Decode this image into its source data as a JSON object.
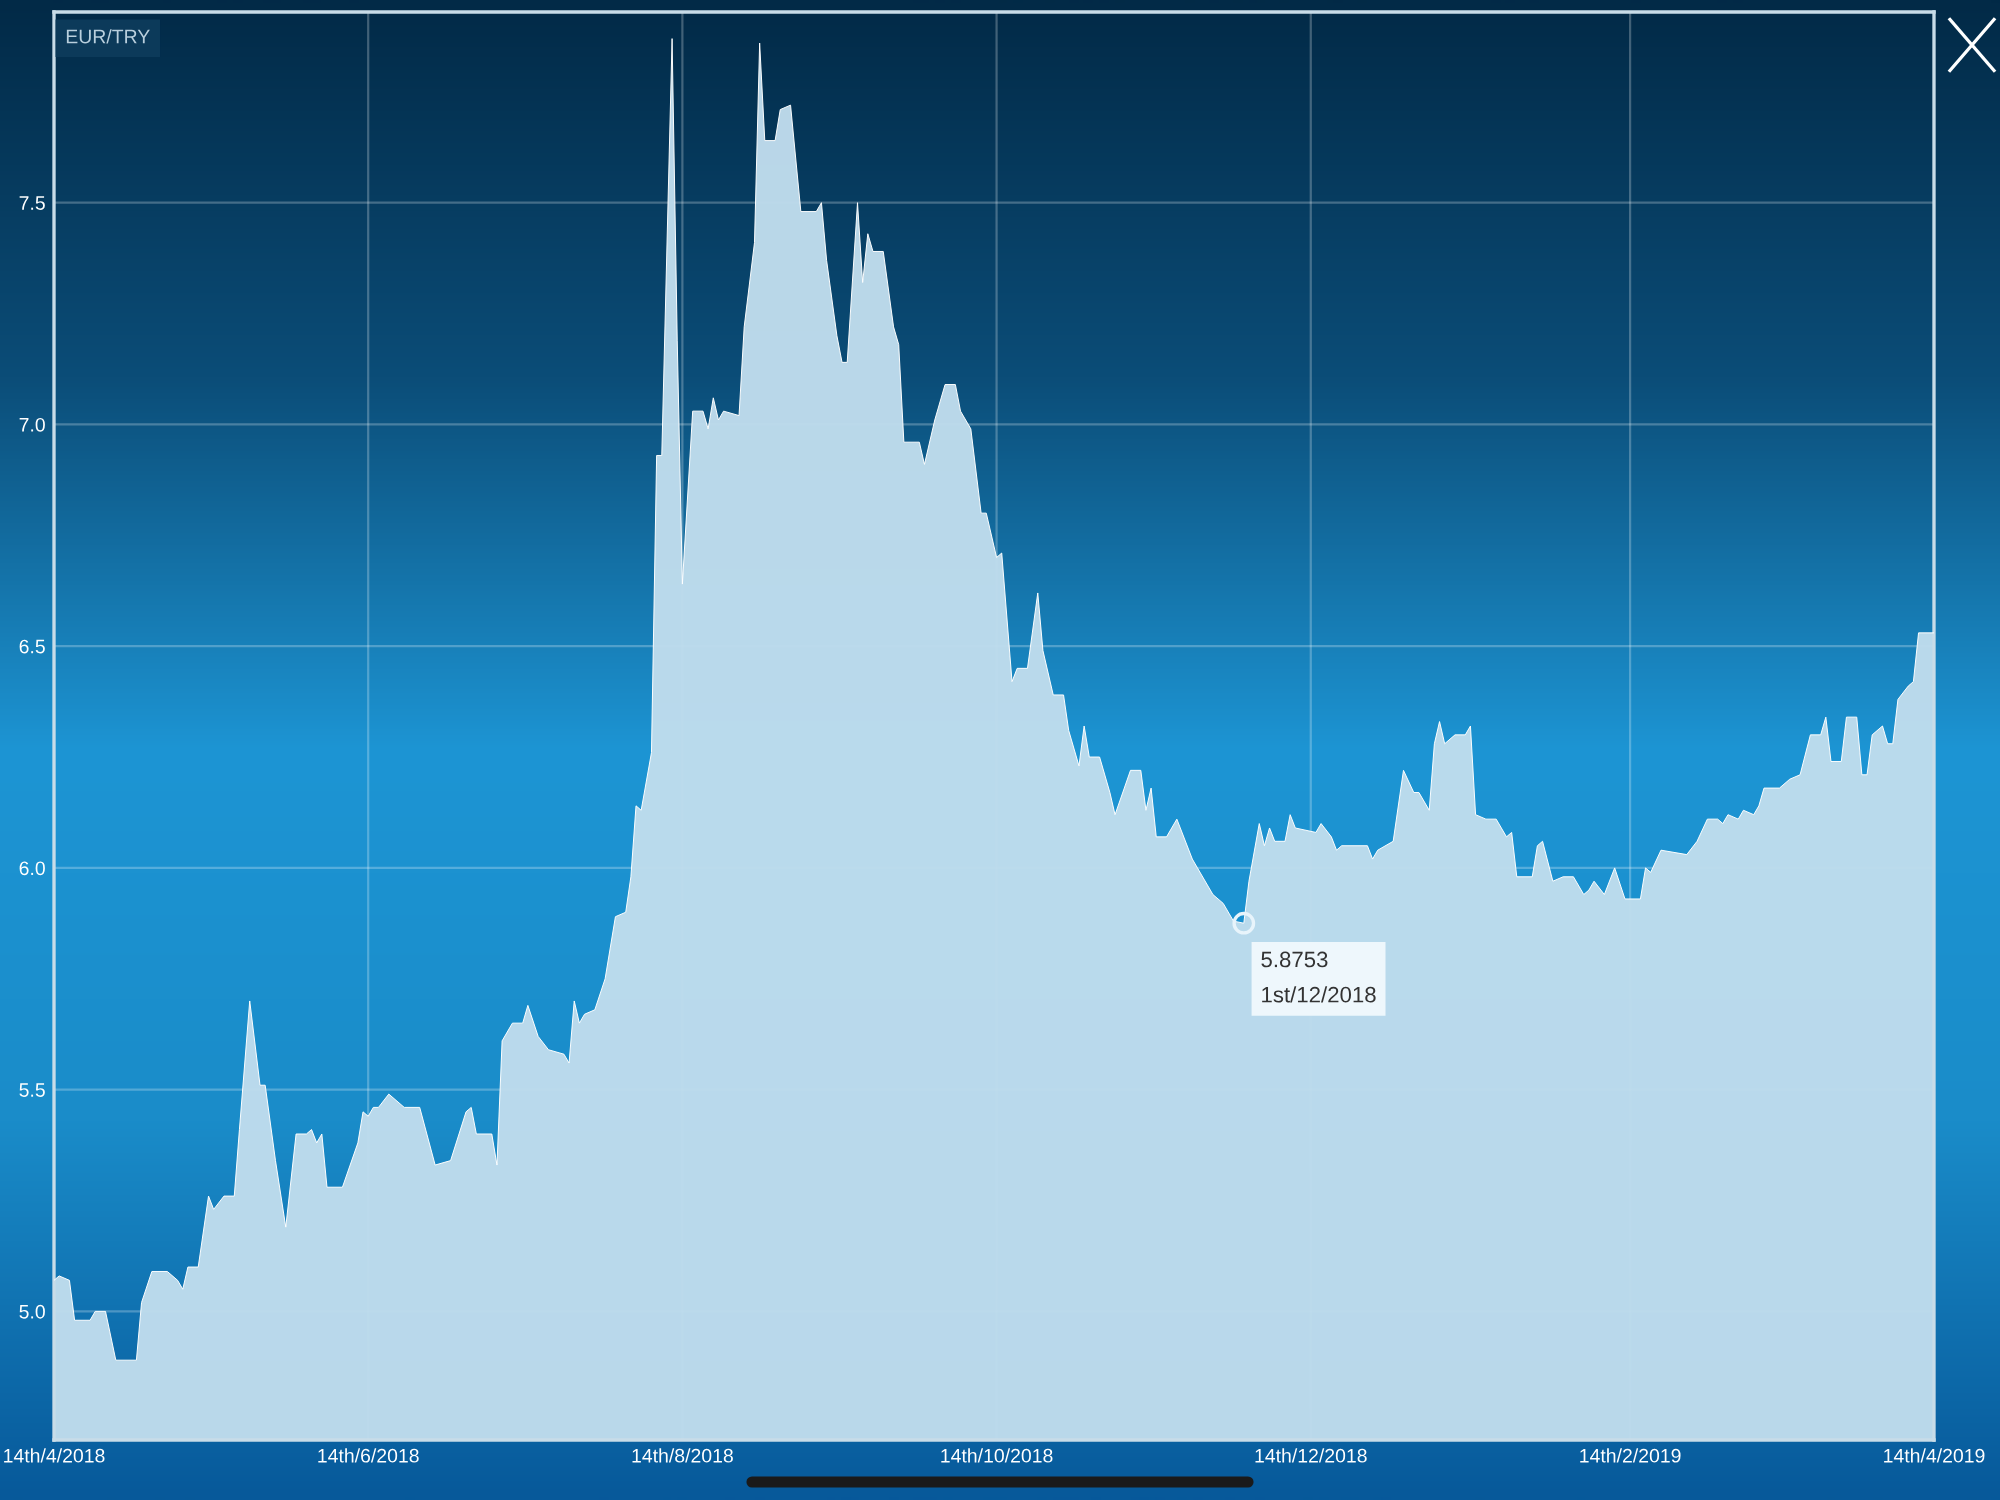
{
  "chart_data": {
    "type": "area",
    "title": "EUR/TRY",
    "x": [
      "2018-04-14",
      "2018-04-15",
      "2018-04-17",
      "2018-04-18",
      "2018-04-21",
      "2018-04-22",
      "2018-04-24",
      "2018-04-26",
      "2018-04-30",
      "2018-05-01",
      "2018-05-03",
      "2018-05-06",
      "2018-05-08",
      "2018-05-09",
      "2018-05-10",
      "2018-05-12",
      "2018-05-14",
      "2018-05-15",
      "2018-05-17",
      "2018-05-19",
      "2018-05-20",
      "2018-05-22",
      "2018-05-24",
      "2018-05-25",
      "2018-05-27",
      "2018-05-29",
      "2018-05-31",
      "2018-06-02",
      "2018-06-03",
      "2018-06-04",
      "2018-06-05",
      "2018-06-06",
      "2018-06-09",
      "2018-06-12",
      "2018-06-13",
      "2018-06-14",
      "2018-06-15",
      "2018-06-16",
      "2018-06-18",
      "2018-06-21",
      "2018-06-24",
      "2018-06-27",
      "2018-06-30",
      "2018-07-03",
      "2018-07-04",
      "2018-07-05",
      "2018-07-08",
      "2018-07-09",
      "2018-07-10",
      "2018-07-12",
      "2018-07-14",
      "2018-07-15",
      "2018-07-17",
      "2018-07-19",
      "2018-07-22",
      "2018-07-23",
      "2018-07-24",
      "2018-07-25",
      "2018-07-26",
      "2018-07-28",
      "2018-07-30",
      "2018-08-01",
      "2018-08-03",
      "2018-08-04",
      "2018-08-05",
      "2018-08-06",
      "2018-08-08",
      "2018-08-09",
      "2018-08-10",
      "2018-08-12",
      "2018-08-13",
      "2018-08-14",
      "2018-08-16",
      "2018-08-18",
      "2018-08-19",
      "2018-08-20",
      "2018-08-21",
      "2018-08-22",
      "2018-08-25",
      "2018-08-26",
      "2018-08-28",
      "2018-08-29",
      "2018-08-30",
      "2018-09-01",
      "2018-09-02",
      "2018-09-04",
      "2018-09-06",
      "2018-09-09",
      "2018-09-10",
      "2018-09-11",
      "2018-09-13",
      "2018-09-14",
      "2018-09-15",
      "2018-09-17",
      "2018-09-18",
      "2018-09-19",
      "2018-09-20",
      "2018-09-22",
      "2018-09-24",
      "2018-09-25",
      "2018-09-26",
      "2018-09-29",
      "2018-09-30",
      "2018-10-02",
      "2018-10-04",
      "2018-10-06",
      "2018-10-07",
      "2018-10-09",
      "2018-10-11",
      "2018-10-12",
      "2018-10-14",
      "2018-10-15",
      "2018-10-17",
      "2018-10-18",
      "2018-10-20",
      "2018-10-22",
      "2018-10-23",
      "2018-10-25",
      "2018-10-27",
      "2018-10-28",
      "2018-10-30",
      "2018-10-31",
      "2018-11-01",
      "2018-11-03",
      "2018-11-05",
      "2018-11-06",
      "2018-11-09",
      "2018-11-11",
      "2018-11-12",
      "2018-11-13",
      "2018-11-14",
      "2018-11-16",
      "2018-11-18",
      "2018-11-21",
      "2018-11-22",
      "2018-11-25",
      "2018-11-27",
      "2018-11-29",
      "2018-12-01",
      "2018-12-02",
      "2018-12-04",
      "2018-12-05",
      "2018-12-06",
      "2018-12-07",
      "2018-12-09",
      "2018-12-10",
      "2018-12-11",
      "2018-12-15",
      "2018-12-16",
      "2018-12-18",
      "2018-12-19",
      "2018-12-20",
      "2018-12-25",
      "2018-12-26",
      "2018-12-27",
      "2018-12-30",
      "2019-01-01",
      "2019-01-03",
      "2019-01-04",
      "2019-01-06",
      "2019-01-07",
      "2019-01-08",
      "2019-01-09",
      "2019-01-11",
      "2019-01-13",
      "2019-01-14",
      "2019-01-15",
      "2019-01-17",
      "2019-01-19",
      "2019-01-21",
      "2019-01-22",
      "2019-01-23",
      "2019-01-26",
      "2019-01-27",
      "2019-01-28",
      "2019-01-30",
      "2019-02-01",
      "2019-02-03",
      "2019-02-05",
      "2019-02-06",
      "2019-02-07",
      "2019-02-09",
      "2019-02-11",
      "2019-02-13",
      "2019-02-16",
      "2019-02-17",
      "2019-02-18",
      "2019-02-20",
      "2019-02-25",
      "2019-02-27",
      "2019-03-01",
      "2019-03-03",
      "2019-03-04",
      "2019-03-05",
      "2019-03-07",
      "2019-03-08",
      "2019-03-10",
      "2019-03-11",
      "2019-03-12",
      "2019-03-15",
      "2019-03-17",
      "2019-03-19",
      "2019-03-21",
      "2019-03-23",
      "2019-03-24",
      "2019-03-25",
      "2019-03-27",
      "2019-03-28",
      "2019-03-30",
      "2019-03-31",
      "2019-04-01",
      "2019-04-02",
      "2019-04-04",
      "2019-04-05",
      "2019-04-06",
      "2019-04-07",
      "2019-04-09",
      "2019-04-10",
      "2019-04-11",
      "2019-04-14"
    ],
    "series": [
      {
        "color": "#ffffff",
        "values": [
          5.07,
          5.08,
          5.07,
          4.98,
          4.98,
          5.0,
          5.0,
          4.89,
          4.89,
          5.02,
          5.09,
          5.09,
          5.07,
          5.05,
          5.1,
          5.1,
          5.26,
          5.23,
          5.26,
          5.26,
          5.41,
          5.7,
          5.51,
          5.51,
          5.34,
          5.19,
          5.4,
          5.4,
          5.41,
          5.38,
          5.4,
          5.28,
          5.28,
          5.38,
          5.45,
          5.44,
          5.46,
          5.46,
          5.49,
          5.46,
          5.46,
          5.33,
          5.34,
          5.45,
          5.46,
          5.4,
          5.4,
          5.33,
          5.61,
          5.65,
          5.65,
          5.69,
          5.62,
          5.59,
          5.58,
          5.56,
          5.7,
          5.65,
          5.67,
          5.68,
          5.75,
          5.89,
          5.9,
          5.98,
          6.14,
          6.13,
          6.26,
          6.93,
          6.93,
          7.87,
          7.19,
          6.64,
          7.03,
          7.03,
          6.99,
          7.06,
          7.01,
          7.03,
          7.02,
          7.22,
          7.41,
          7.86,
          7.64,
          7.64,
          7.71,
          7.72,
          7.48,
          7.48,
          7.5,
          7.37,
          7.2,
          7.14,
          7.14,
          7.5,
          7.32,
          7.43,
          7.39,
          7.39,
          7.22,
          7.18,
          6.96,
          6.96,
          6.91,
          7.01,
          7.09,
          7.09,
          7.03,
          6.99,
          6.8,
          6.8,
          6.7,
          6.71,
          6.42,
          6.45,
          6.45,
          6.62,
          6.49,
          6.39,
          6.39,
          6.31,
          6.23,
          6.32,
          6.25,
          6.25,
          6.17,
          6.12,
          6.22,
          6.22,
          6.13,
          6.18,
          6.07,
          6.07,
          6.11,
          6.02,
          6.0,
          5.94,
          5.92,
          5.88,
          5.8753,
          5.97,
          6.1,
          6.05,
          6.09,
          6.06,
          6.06,
          6.12,
          6.09,
          6.08,
          6.1,
          6.07,
          6.04,
          6.05,
          6.05,
          6.02,
          6.04,
          6.06,
          6.22,
          6.17,
          6.17,
          6.13,
          6.28,
          6.33,
          6.28,
          6.3,
          6.3,
          6.32,
          6.12,
          6.11,
          6.11,
          6.07,
          6.08,
          5.98,
          5.98,
          6.05,
          6.06,
          5.97,
          5.98,
          5.98,
          5.94,
          5.95,
          5.97,
          5.94,
          6.0,
          5.93,
          5.93,
          6.0,
          5.99,
          6.04,
          6.03,
          6.06,
          6.11,
          6.11,
          6.1,
          6.12,
          6.11,
          6.13,
          6.12,
          6.14,
          6.18,
          6.18,
          6.2,
          6.21,
          6.3,
          6.3,
          6.34,
          6.24,
          6.24,
          6.34,
          6.34,
          6.21,
          6.21,
          6.3,
          6.32,
          6.28,
          6.28,
          6.38,
          6.41,
          6.42,
          6.53,
          6.53
        ]
      }
    ],
    "xlim": [
      "2018-04-14",
      "2019-04-14"
    ],
    "xticks": [
      {
        "value": "2018-04-14",
        "label": "14th/4/2018"
      },
      {
        "value": "2018-06-14",
        "label": "14th/6/2018"
      },
      {
        "value": "2018-08-14",
        "label": "14th/8/2018"
      },
      {
        "value": "2018-10-14",
        "label": "14th/10/2018"
      },
      {
        "value": "2018-12-14",
        "label": "14th/12/2018"
      },
      {
        "value": "2019-02-14",
        "label": "14th/2/2019"
      },
      {
        "value": "2019-04-14",
        "label": "14th/4/2019"
      }
    ],
    "ylim": [
      4.71,
      7.93
    ],
    "yticks": [
      {
        "value": 5,
        "label": "5.0"
      },
      5.5,
      {
        "value": 6,
        "label": "6.0"
      },
      6.5,
      {
        "value": 7,
        "label": "7.0"
      },
      7.5
    ],
    "grid": true,
    "legend": false,
    "marker": "none",
    "line_style": "solid",
    "annotations": [
      {
        "text": "5.8753\n1st/12/2018",
        "x": "2018-12-01",
        "y": 5.8753
      }
    ]
  }
}
